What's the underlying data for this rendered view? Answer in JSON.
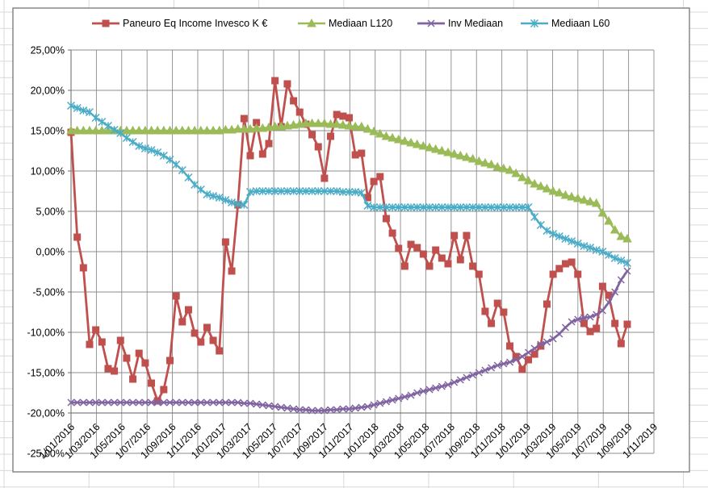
{
  "chart_data": {
    "type": "line",
    "title": "",
    "grid": true,
    "legend_position": "top",
    "points_per_month": 2,
    "x_axis": {
      "label": "",
      "start": "1/01/2016",
      "end": "1/11/2019",
      "tick_labels": [
        "1/01/2016",
        "1/03/2016",
        "1/05/2016",
        "1/07/2016",
        "1/09/2016",
        "1/11/2016",
        "1/01/2017",
        "1/03/2017",
        "1/05/2017",
        "1/07/2017",
        "1/09/2017",
        "1/11/2017",
        "1/01/2018",
        "1/03/2018",
        "1/05/2018",
        "1/07/2018",
        "1/09/2018",
        "1/11/2018",
        "1/01/2019",
        "1/03/2019",
        "1/05/2019",
        "1/07/2019",
        "1/09/2019",
        "1/11/2019"
      ]
    },
    "y_axis": {
      "label": "",
      "min": -25,
      "max": 25,
      "step": 5,
      "number_format": "0,00%",
      "tick_labels": [
        "25,00%",
        "20,00%",
        "15,00%",
        "10,00%",
        "5,00%",
        "0,00%",
        "-5,00%",
        "-10,00%",
        "-15,00%",
        "-20,00%",
        "-25,00%"
      ]
    },
    "colors": {
      "gridline": "#8C8C8C",
      "axis_line": "#808080",
      "chart_border": "#7F7F7F",
      "chart_background": "#FFFFFF",
      "sheet_line": "#D9D9D9",
      "label_text": "#000000"
    },
    "series": [
      {
        "name": "Paneuro Eq Income Invesco K €",
        "color": "#C0504D",
        "marker": "square",
        "values": [
          14.8,
          1.8,
          -2.0,
          -11.5,
          -9.7,
          -11.2,
          -14.5,
          -14.8,
          -11.0,
          -13.2,
          -15.8,
          -12.6,
          -13.8,
          -16.3,
          -18.5,
          -17.1,
          -13.5,
          -5.5,
          -8.7,
          -7.2,
          -10.1,
          -11.2,
          -9.4,
          -11.0,
          -12.3,
          1.2,
          -2.4,
          5.8,
          16.5,
          11.9,
          16.0,
          12.1,
          13.4,
          21.2,
          15.5,
          20.8,
          18.7,
          17.3,
          15.8,
          14.5,
          13.0,
          9.1,
          14.3,
          17.0,
          16.8,
          16.6,
          12.0,
          12.2,
          6.7,
          8.7,
          9.3,
          4.1,
          2.3,
          0.4,
          -1.8,
          0.9,
          0.5,
          -0.3,
          -1.8,
          0.2,
          -0.8,
          -1.5,
          2.0,
          -1.0,
          2.0,
          -1.8,
          -2.8,
          -7.4,
          -8.9,
          -6.4,
          -7.5,
          -11.7,
          -13.0,
          -14.6,
          -13.4,
          -12.7,
          -11.7,
          -6.5,
          -2.8,
          -2.1,
          -1.5,
          -1.3,
          -2.8,
          -8.9,
          -9.9,
          -9.5,
          -4.3,
          -5.4,
          -8.9,
          -11.4,
          -9.0
        ]
      },
      {
        "name": "Mediaan L120",
        "color": "#9BBB59",
        "marker": "triangle",
        "values": [
          15.0,
          15.0,
          15.0,
          15.0,
          15.0,
          15.0,
          15.0,
          15.0,
          15.0,
          15.0,
          15.0,
          15.0,
          15.0,
          15.0,
          15.0,
          15.0,
          15.0,
          15.0,
          15.0,
          15.0,
          15.0,
          15.0,
          15.0,
          15.0,
          15.0,
          15.1,
          15.1,
          15.2,
          15.2,
          15.2,
          15.3,
          15.3,
          15.4,
          15.5,
          15.5,
          15.6,
          15.7,
          15.8,
          15.9,
          15.9,
          15.9,
          15.9,
          15.8,
          15.8,
          15.7,
          15.6,
          15.5,
          15.5,
          15.2,
          14.9,
          14.6,
          14.3,
          14.1,
          13.9,
          13.7,
          13.5,
          13.3,
          13.1,
          12.9,
          12.7,
          12.5,
          12.3,
          12.1,
          11.9,
          11.7,
          11.5,
          11.2,
          11.0,
          10.8,
          10.5,
          10.3,
          10.1,
          9.7,
          9.2,
          8.8,
          8.4,
          8.1,
          7.8,
          7.5,
          7.3,
          7.0,
          6.8,
          6.6,
          6.4,
          6.2,
          6.0,
          4.8,
          3.8,
          2.7,
          1.9,
          1.6
        ]
      },
      {
        "name": "Inv Mediaan",
        "color": "#8064A2",
        "marker": "x",
        "values": [
          -18.7,
          -18.7,
          -18.7,
          -18.7,
          -18.7,
          -18.7,
          -18.7,
          -18.7,
          -18.7,
          -18.7,
          -18.7,
          -18.7,
          -18.7,
          -18.7,
          -18.7,
          -18.7,
          -18.7,
          -18.7,
          -18.7,
          -18.7,
          -18.7,
          -18.7,
          -18.7,
          -18.7,
          -18.7,
          -18.7,
          -18.7,
          -18.7,
          -18.8,
          -18.8,
          -18.9,
          -19.0,
          -19.1,
          -19.2,
          -19.3,
          -19.4,
          -19.5,
          -19.6,
          -19.6,
          -19.7,
          -19.7,
          -19.7,
          -19.6,
          -19.6,
          -19.5,
          -19.5,
          -19.4,
          -19.3,
          -19.2,
          -19.0,
          -18.8,
          -18.6,
          -18.4,
          -18.2,
          -18.0,
          -17.8,
          -17.5,
          -17.3,
          -17.1,
          -16.9,
          -16.7,
          -16.5,
          -16.2,
          -15.9,
          -15.6,
          -15.3,
          -15.0,
          -14.7,
          -14.4,
          -14.1,
          -13.9,
          -13.7,
          -13.4,
          -13.0,
          -12.5,
          -12.0,
          -11.5,
          -11.2,
          -10.8,
          -10.2,
          -9.4,
          -8.7,
          -8.4,
          -8.2,
          -8.1,
          -7.8,
          -7.3,
          -6.3,
          -5.0,
          -3.5,
          -2.4
        ]
      },
      {
        "name": "Mediaan L60",
        "color": "#4BACC6",
        "marker": "asterisk",
        "values": [
          18.1,
          17.8,
          17.5,
          17.3,
          16.6,
          16.1,
          15.6,
          15.1,
          14.7,
          14.1,
          13.6,
          13.1,
          12.8,
          12.6,
          12.3,
          11.9,
          11.4,
          10.8,
          10.1,
          9.2,
          8.3,
          7.7,
          7.1,
          6.9,
          6.7,
          6.4,
          6.1,
          5.9,
          5.8,
          7.4,
          7.5,
          7.5,
          7.5,
          7.5,
          7.5,
          7.5,
          7.5,
          7.5,
          7.5,
          7.5,
          7.5,
          7.5,
          7.5,
          7.5,
          7.4,
          7.4,
          7.4,
          7.3,
          5.7,
          5.5,
          5.5,
          5.5,
          5.5,
          5.5,
          5.5,
          5.5,
          5.5,
          5.5,
          5.5,
          5.5,
          5.5,
          5.5,
          5.5,
          5.5,
          5.5,
          5.5,
          5.5,
          5.5,
          5.5,
          5.5,
          5.5,
          5.5,
          5.5,
          5.5,
          5.5,
          4.3,
          3.3,
          2.6,
          2.2,
          1.9,
          1.6,
          1.3,
          1.0,
          0.7,
          0.5,
          0.2,
          0.0,
          -0.4,
          -0.8,
          -1.1,
          -1.4
        ]
      }
    ]
  },
  "legend": {
    "items": [
      {
        "label": "Paneuro Eq Income Invesco K €"
      },
      {
        "label": "Mediaan L120"
      },
      {
        "label": "Inv Mediaan"
      },
      {
        "label": "Mediaan L60"
      }
    ]
  }
}
